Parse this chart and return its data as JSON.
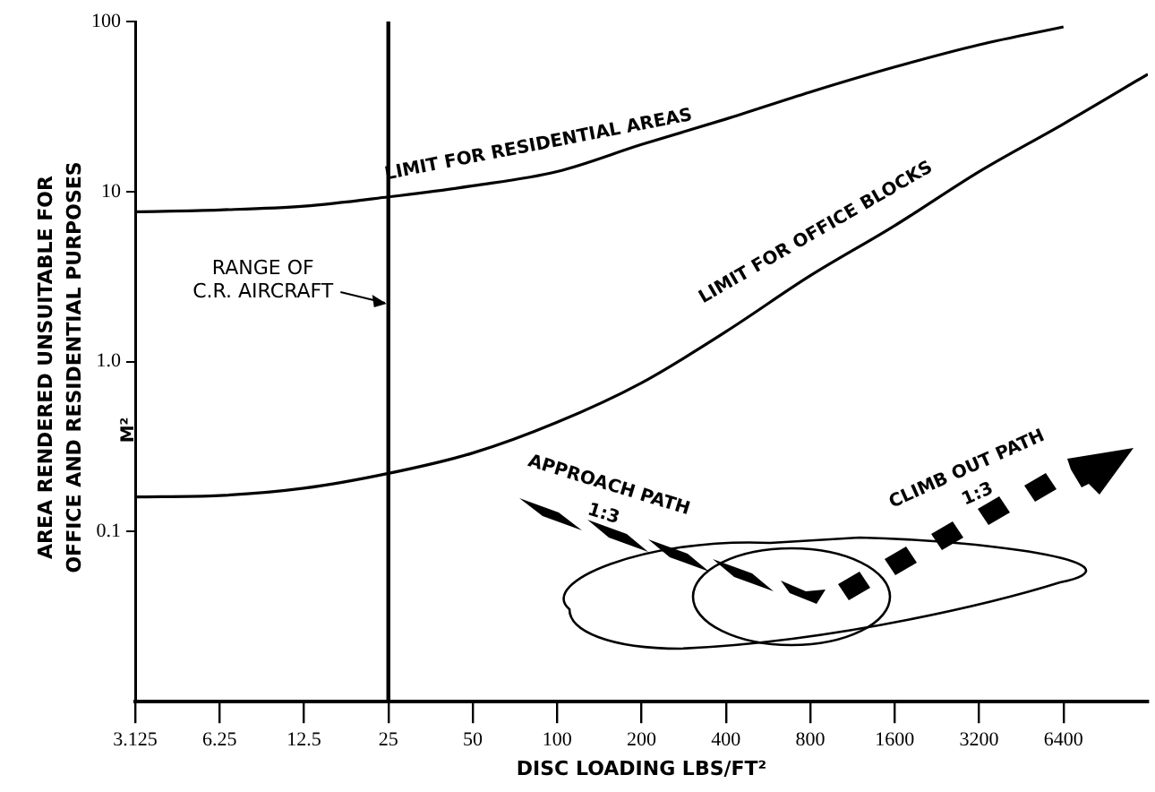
{
  "chart_data": {
    "type": "line",
    "xlabel": "DISC LOADING LBS/FT²",
    "ylabel": "AREA RENDERED UNSUITABLE FOR OFFICE AND RESIDENTIAL PURPOSES",
    "log": "xy",
    "grid": false,
    "legend": false,
    "marker": "none",
    "line_style": "solid",
    "xlim": [
      3.125,
      12800
    ],
    "xticks": [
      3.125,
      6.25,
      12.5,
      25,
      50,
      100,
      200,
      400,
      800,
      1600,
      3200,
      6400
    ],
    "ylim": [
      0.01,
      100
    ],
    "yticks": [
      {
        "value": 0.1,
        "label": "0.1"
      },
      {
        "value": 1,
        "label": "1.0"
      },
      10,
      100
    ],
    "series": [
      {
        "color": "#000000",
        "x": [
          3.125,
          6.25,
          12.5,
          25,
          50,
          100,
          200,
          400,
          800,
          1600,
          3200,
          6400
        ],
        "values": [
          7.6,
          7.8,
          8.2,
          9.3,
          10.8,
          13.1,
          18.9,
          26.7,
          38.5,
          54,
          73,
          93
        ]
      },
      {
        "color": "#000000",
        "x": [
          3.125,
          6.25,
          12.5,
          25,
          50,
          100,
          200,
          400,
          800,
          1600,
          3200,
          6400,
          12800
        ],
        "values": [
          0.16,
          0.163,
          0.18,
          0.22,
          0.29,
          0.44,
          0.75,
          1.5,
          3.2,
          6.3,
          13.1,
          25,
          49
        ]
      }
    ],
    "ref_lines": [
      {
        "axis": "x",
        "value": 25,
        "label": "RANGE OF C.R. AIRCRAFT",
        "color": "#000000"
      }
    ],
    "annotations": [
      {
        "text": "LIMIT FOR RESIDENTIAL AREAS",
        "x": 90,
        "y": 12.5
      },
      {
        "text": "LIMIT FOR OFFICE BLOCKS",
        "x": 950,
        "y": 4
      },
      "APPROACH PATH",
      "1:3",
      "CLIMB OUT PATH",
      "1:3",
      "M²"
    ]
  }
}
